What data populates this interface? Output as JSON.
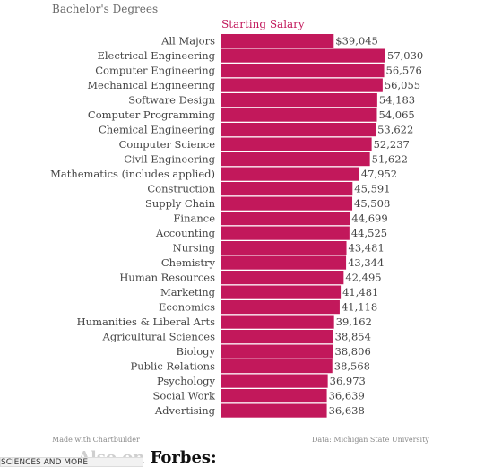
{
  "header": {
    "title": "Bachelor's Degrees"
  },
  "footer": {
    "made_with": "Made with Chartbuilder",
    "source": "Data: Michigan State University"
  },
  "promo": {
    "also_on": "Also on",
    "brand": "Forbes:",
    "tag": "SCIENCES AND MORE"
  },
  "colors": {
    "bar": "#c2185b",
    "text": "#444444",
    "accent": "#c2185b"
  },
  "chart_data": {
    "type": "bar",
    "orientation": "horizontal",
    "series_title": "Starting Salary",
    "categories": [
      "All Majors",
      "Electrical Engineering",
      "Computer Engineering",
      "Mechanical Engineering",
      "Software Design",
      "Computer Programming",
      "Chemical Engineering",
      "Computer Science",
      "Civil Engineering",
      "Mathematics (includes applied)",
      "Construction",
      "Supply Chain",
      "Finance",
      "Accounting",
      "Nursing",
      "Chemistry",
      "Human Resources",
      "Marketing",
      "Economics",
      "Humanities & Liberal Arts",
      "Agricultural Sciences",
      "Biology",
      "Public Relations",
      "Psychology",
      "Social Work",
      "Advertising"
    ],
    "values": [
      39045,
      57030,
      56576,
      56055,
      54183,
      54065,
      53622,
      52237,
      51622,
      47952,
      45591,
      45508,
      44699,
      44525,
      43481,
      43344,
      42495,
      41481,
      41118,
      39162,
      38854,
      38806,
      38568,
      36973,
      36639,
      36638
    ],
    "value_labels": [
      "$39,045",
      "57,030",
      "56,576",
      "56,055",
      "54,183",
      "54,065",
      "53,622",
      "52,237",
      "51,622",
      "47,952",
      "45,591",
      "45,508",
      "44,699",
      "44,525",
      "43,481",
      "43,344",
      "42,495",
      "41,481",
      "41,118",
      "39,162",
      "38,854",
      "38,806",
      "38,568",
      "36,973",
      "36,639",
      "36,638"
    ],
    "xlim": [
      0,
      57030
    ],
    "grid": false,
    "legend": "none"
  }
}
